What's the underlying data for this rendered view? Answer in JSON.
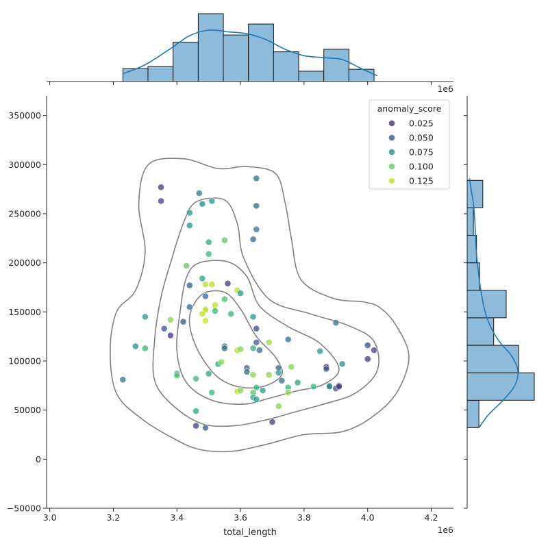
{
  "chart_data": {
    "type": "scatter",
    "xlabel": "total_length",
    "ylabel": "",
    "x_exponent_label": "1e6",
    "xlim": [
      2.99,
      4.27
    ],
    "ylim": [
      -50000,
      370000
    ],
    "x_ticks": [
      3.0,
      3.2,
      3.4,
      3.6,
      3.8,
      4.0,
      4.2
    ],
    "x_tick_labels": [
      "3.0",
      "3.2",
      "3.4",
      "3.6",
      "3.8",
      "4.0",
      "4.2"
    ],
    "y_ticks": [
      -50000,
      0,
      50000,
      100000,
      150000,
      200000,
      250000,
      300000,
      350000
    ],
    "y_tick_labels": [
      "−50000",
      "0",
      "50000",
      "100000",
      "150000",
      "200000",
      "250000",
      "300000",
      "350000"
    ],
    "legend": {
      "title": "anomaly_score",
      "placement": "top-right",
      "entries": [
        {
          "label": "0.025",
          "color": "#472d7b"
        },
        {
          "label": "0.050",
          "color": "#3b528b"
        },
        {
          "label": "0.075",
          "color": "#21918c"
        },
        {
          "label": "0.100",
          "color": "#5ec962"
        },
        {
          "label": "0.125",
          "color": "#c8e020"
        }
      ]
    },
    "colormap": {
      "name": "viridis",
      "stops": [
        "#440154",
        "#482878",
        "#3e4989",
        "#31688e",
        "#26828e",
        "#1f9e89",
        "#35b779",
        "#6ece58",
        "#b5de2b",
        "#fde725"
      ],
      "min": 0.01,
      "max": 0.145
    },
    "points": [
      [
        3.35,
        277000,
        0.035
      ],
      [
        3.35,
        263000,
        0.035
      ],
      [
        3.47,
        271000,
        0.07
      ],
      [
        3.48,
        260000,
        0.075
      ],
      [
        3.51,
        263000,
        0.08
      ],
      [
        3.44,
        251000,
        0.08
      ],
      [
        3.44,
        238000,
        0.08
      ],
      [
        3.65,
        286000,
        0.055
      ],
      [
        3.65,
        258000,
        0.06
      ],
      [
        3.65,
        234000,
        0.06
      ],
      [
        3.64,
        224000,
        0.055
      ],
      [
        3.5,
        221000,
        0.09
      ],
      [
        3.55,
        223000,
        0.11
      ],
      [
        3.5,
        209000,
        0.1
      ],
      [
        3.43,
        197000,
        0.11
      ],
      [
        3.48,
        184000,
        0.09
      ],
      [
        3.44,
        177000,
        0.05
      ],
      [
        3.49,
        178000,
        0.13
      ],
      [
        3.51,
        178000,
        0.13
      ],
      [
        3.56,
        179000,
        0.03
      ],
      [
        3.59,
        172000,
        0.13
      ],
      [
        3.6,
        169000,
        0.085
      ],
      [
        3.49,
        166000,
        0.06
      ],
      [
        3.55,
        163000,
        0.105
      ],
      [
        3.52,
        157000,
        0.13
      ],
      [
        3.44,
        155000,
        0.055
      ],
      [
        3.49,
        153000,
        0.14
      ],
      [
        3.49,
        152000,
        0.13
      ],
      [
        3.48,
        148000,
        0.13
      ],
      [
        3.52,
        151000,
        0.1
      ],
      [
        3.57,
        148000,
        0.1
      ],
      [
        3.3,
        145000,
        0.085
      ],
      [
        3.38,
        142000,
        0.12
      ],
      [
        3.42,
        140000,
        0.045
      ],
      [
        3.49,
        141000,
        0.135
      ],
      [
        3.64,
        145000,
        0.08
      ],
      [
        3.9,
        139000,
        0.06
      ],
      [
        3.36,
        133000,
        0.045
      ],
      [
        3.38,
        126000,
        0.03
      ],
      [
        3.65,
        133000,
        0.04
      ],
      [
        3.27,
        115000,
        0.075
      ],
      [
        3.3,
        113000,
        0.1
      ],
      [
        3.55,
        115000,
        0.055
      ],
      [
        3.55,
        113000,
        0.06
      ],
      [
        3.59,
        111000,
        0.13
      ],
      [
        3.6,
        112000,
        0.12
      ],
      [
        3.64,
        113000,
        0.095
      ],
      [
        3.65,
        119000,
        0.05
      ],
      [
        3.66,
        111000,
        0.06
      ],
      [
        3.69,
        119000,
        0.125
      ],
      [
        3.75,
        122000,
        0.06
      ],
      [
        3.85,
        110000,
        0.08
      ],
      [
        4.0,
        116000,
        0.04
      ],
      [
        4.02,
        111000,
        0.035
      ],
      [
        4.0,
        102000,
        0.03
      ],
      [
        3.23,
        81000,
        0.06
      ],
      [
        3.4,
        87000,
        0.09
      ],
      [
        3.4,
        85000,
        0.11
      ],
      [
        3.46,
        82000,
        0.1
      ],
      [
        3.5,
        87000,
        0.09
      ],
      [
        3.53,
        97000,
        0.09
      ],
      [
        3.54,
        99000,
        0.12
      ],
      [
        3.62,
        93000,
        0.05
      ],
      [
        3.62,
        89000,
        0.06
      ],
      [
        3.64,
        86000,
        0.12
      ],
      [
        3.69,
        86000,
        0.12
      ],
      [
        3.72,
        88000,
        0.08
      ],
      [
        3.72,
        93000,
        0.05
      ],
      [
        3.73,
        80000,
        0.06
      ],
      [
        3.76,
        94000,
        0.12
      ],
      [
        3.87,
        94000,
        0.03
      ],
      [
        3.87,
        92000,
        0.045
      ],
      [
        3.92,
        97000,
        0.08
      ],
      [
        3.78,
        78000,
        0.09
      ],
      [
        3.83,
        74000,
        0.1
      ],
      [
        3.75,
        73000,
        0.1
      ],
      [
        3.88,
        75000,
        0.08
      ],
      [
        3.88,
        74000,
        0.07
      ],
      [
        3.9,
        72000,
        0.045
      ],
      [
        3.91,
        75000,
        0.035
      ],
      [
        3.91,
        74000,
        0.035
      ],
      [
        3.65,
        73000,
        0.1
      ],
      [
        3.64,
        68000,
        0.11
      ],
      [
        3.67,
        70000,
        0.08
      ],
      [
        3.51,
        68000,
        0.1
      ],
      [
        3.59,
        69000,
        0.13
      ],
      [
        3.6,
        70000,
        0.12
      ],
      [
        3.64,
        63000,
        0.09
      ],
      [
        3.65,
        61000,
        0.08
      ],
      [
        3.75,
        68000,
        0.12
      ],
      [
        3.72,
        54000,
        0.12
      ],
      [
        3.46,
        49000,
        0.09
      ],
      [
        3.7,
        38000,
        0.03
      ],
      [
        3.46,
        34000,
        0.035
      ],
      [
        3.49,
        32000,
        0.045
      ]
    ],
    "kde_contours": [
      [
        [
          3.31,
          300000
        ],
        [
          3.42,
          306000
        ],
        [
          3.53,
          296000
        ],
        [
          3.62,
          298000
        ],
        [
          3.71,
          291000
        ],
        [
          3.74,
          262000
        ],
        [
          3.76,
          225000
        ],
        [
          3.79,
          183000
        ],
        [
          3.89,
          164000
        ],
        [
          3.99,
          160000
        ],
        [
          4.04,
          154000
        ],
        [
          4.09,
          136000
        ],
        [
          4.13,
          104000
        ],
        [
          4.09,
          67000
        ],
        [
          4.01,
          42000
        ],
        [
          3.92,
          28000
        ],
        [
          3.8,
          25000
        ],
        [
          3.68,
          15000
        ],
        [
          3.57,
          8000
        ],
        [
          3.47,
          10000
        ],
        [
          3.39,
          21000
        ],
        [
          3.29,
          41000
        ],
        [
          3.21,
          67000
        ],
        [
          3.19,
          110000
        ],
        [
          3.21,
          150000
        ],
        [
          3.27,
          172000
        ],
        [
          3.3,
          211000
        ],
        [
          3.28,
          260000
        ]
      ],
      [
        [
          3.46,
          262000
        ],
        [
          3.55,
          264000
        ],
        [
          3.59,
          240000
        ],
        [
          3.61,
          205000
        ],
        [
          3.69,
          163000
        ],
        [
          3.82,
          148000
        ],
        [
          3.94,
          136000
        ],
        [
          4.02,
          120000
        ],
        [
          4.03,
          90000
        ],
        [
          3.96,
          67000
        ],
        [
          3.86,
          56000
        ],
        [
          3.77,
          48000
        ],
        [
          3.68,
          40000
        ],
        [
          3.58,
          34000
        ],
        [
          3.48,
          36000
        ],
        [
          3.39,
          54000
        ],
        [
          3.33,
          80000
        ],
        [
          3.33,
          122000
        ],
        [
          3.35,
          165000
        ],
        [
          3.38,
          200000
        ],
        [
          3.42,
          240000
        ]
      ],
      [
        [
          3.47,
          200000
        ],
        [
          3.56,
          201000
        ],
        [
          3.62,
          186000
        ],
        [
          3.66,
          156000
        ],
        [
          3.75,
          135000
        ],
        [
          3.85,
          118000
        ],
        [
          3.91,
          92000
        ],
        [
          3.86,
          76000
        ],
        [
          3.77,
          69000
        ],
        [
          3.69,
          62000
        ],
        [
          3.61,
          56000
        ],
        [
          3.51,
          60000
        ],
        [
          3.43,
          78000
        ],
        [
          3.4,
          110000
        ],
        [
          3.41,
          150000
        ],
        [
          3.43,
          185000
        ]
      ],
      [
        [
          3.48,
          168000
        ],
        [
          3.55,
          170000
        ],
        [
          3.6,
          153000
        ],
        [
          3.65,
          125000
        ],
        [
          3.71,
          104000
        ],
        [
          3.73,
          86000
        ],
        [
          3.67,
          74000
        ],
        [
          3.59,
          74000
        ],
        [
          3.52,
          86000
        ],
        [
          3.46,
          115000
        ],
        [
          3.44,
          145000
        ]
      ]
    ],
    "x_marginal": {
      "type": "histogram",
      "bin_edges": [
        3.23,
        3.309,
        3.388,
        3.467,
        3.546,
        3.625,
        3.704,
        3.783,
        3.862,
        3.941,
        4.02
      ],
      "counts": [
        2,
        2.3,
        6.1,
        10.5,
        7.2,
        8.9,
        4.6,
        1.6,
        5.0,
        1.9
      ],
      "kde": [
        [
          3.23,
          1.2
        ],
        [
          3.3,
          2.6
        ],
        [
          3.38,
          5.1
        ],
        [
          3.44,
          7.1
        ],
        [
          3.5,
          7.95
        ],
        [
          3.56,
          7.7
        ],
        [
          3.62,
          7.4
        ],
        [
          3.68,
          6.5
        ],
        [
          3.74,
          5.0
        ],
        [
          3.8,
          4.0
        ],
        [
          3.86,
          3.7
        ],
        [
          3.92,
          3.4
        ],
        [
          3.98,
          2.0
        ],
        [
          4.03,
          0.9
        ]
      ]
    },
    "y_marginal": {
      "type": "histogram",
      "bin_edges": [
        32000,
        60000,
        88000,
        116000,
        144000,
        172000,
        200000,
        228000,
        256000,
        284000
      ],
      "counts": [
        0.75,
        4.3,
        3.3,
        1.7,
        2.5,
        0.8,
        0.6,
        0.4,
        1.0
      ],
      "kde": [
        [
          32000,
          0.75
        ],
        [
          45000,
          1.35
        ],
        [
          60000,
          2.3
        ],
        [
          75000,
          3.05
        ],
        [
          90000,
          3.25
        ],
        [
          105000,
          2.85
        ],
        [
          120000,
          2.05
        ],
        [
          135000,
          1.5
        ],
        [
          150000,
          1.15
        ],
        [
          165000,
          0.95
        ],
        [
          180000,
          0.8
        ],
        [
          200000,
          0.65
        ],
        [
          220000,
          0.55
        ],
        [
          240000,
          0.5
        ],
        [
          260000,
          0.4
        ],
        [
          275000,
          0.25
        ],
        [
          286000,
          0.15
        ]
      ]
    }
  }
}
